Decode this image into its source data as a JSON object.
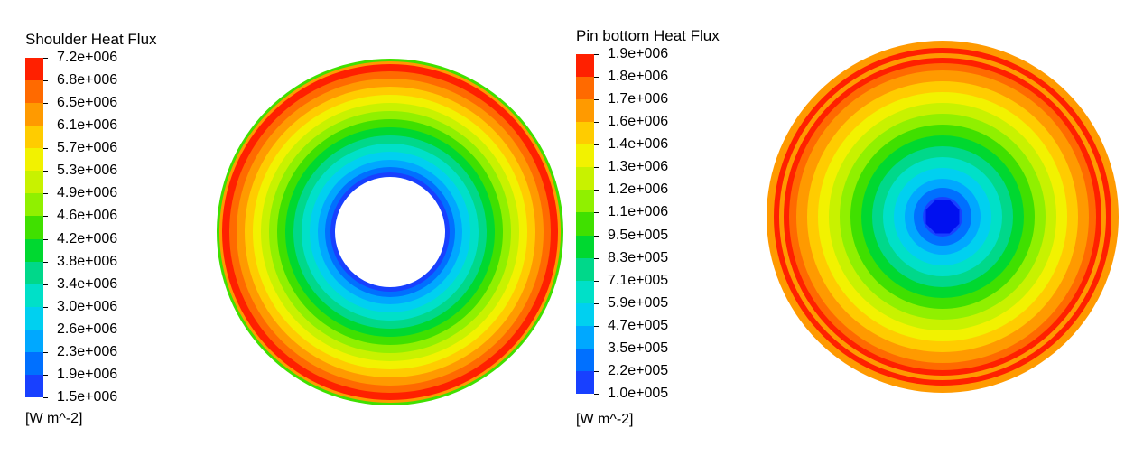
{
  "chart_data": [
    {
      "type": "heatmap",
      "title": "Shoulder Heat Flux",
      "unit": "[W m^-2]",
      "colormap_labels": [
        "7.2e+006",
        "6.8e+006",
        "6.5e+006",
        "6.1e+006",
        "5.7e+006",
        "5.3e+006",
        "4.9e+006",
        "4.6e+006",
        "4.2e+006",
        "3.8e+006",
        "3.4e+006",
        "3.0e+006",
        "2.6e+006",
        "2.3e+006",
        "1.9e+006",
        "1.5e+006"
      ],
      "range": [
        1500000.0,
        7200000.0
      ],
      "geometry": "annulus",
      "inner_value": 1500000.0,
      "outer_value": 7200000.0,
      "profile": "increasing with radius, peak near outer edge, lower at rim"
    },
    {
      "type": "heatmap",
      "title": "Pin bottom Heat Flux",
      "unit": "[W m^-2]",
      "colormap_labels": [
        "1.9e+006",
        "1.8e+006",
        "1.7e+006",
        "1.6e+006",
        "1.4e+006",
        "1.3e+006",
        "1.2e+006",
        "1.1e+006",
        "9.5e+005",
        "8.3e+005",
        "7.1e+005",
        "5.9e+005",
        "4.7e+005",
        "3.5e+005",
        "2.2e+005",
        "1.0e+005"
      ],
      "range": [
        100000.0,
        1900000.0
      ],
      "geometry": "disk",
      "inner_value": 100000.0,
      "outer_value": 1900000.0,
      "profile": "increasing with radius from center minimum, peak near outer edge"
    }
  ],
  "colors": [
    "#ff2000",
    "#ff6a00",
    "#ff9a00",
    "#ffcc00",
    "#f2f200",
    "#c8f200",
    "#90f000",
    "#40e000",
    "#00d830",
    "#00d88a",
    "#00e0c8",
    "#00d0f0",
    "#00a8ff",
    "#0070ff",
    "#1840ff",
    "#0010f0"
  ]
}
